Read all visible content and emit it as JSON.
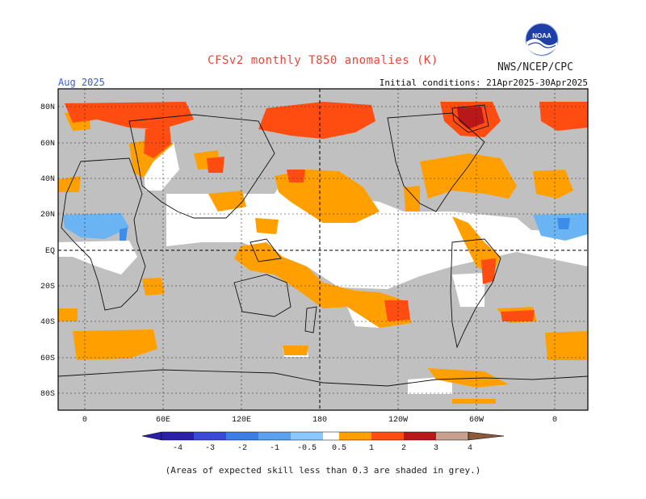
{
  "header": {
    "title": "CFSv2 monthly T850 anomalies (K)",
    "agency": "NWS/NCEP/CPC",
    "month": "Aug 2025",
    "initial_conditions": "Initial conditions: 21Apr2025-30Apr2025"
  },
  "logo": {
    "text": "NOAA"
  },
  "map": {
    "lat_labels": [
      "80N",
      "60N",
      "40N",
      "20N",
      "EQ",
      "20S",
      "40S",
      "60S",
      "80S"
    ],
    "lon_labels": [
      "0",
      "60E",
      "120E",
      "180",
      "120W",
      "60W",
      "0"
    ],
    "colors": {
      "grey": "#c0c0c0",
      "white": "#ffffff",
      "orange": "#ffa000",
      "red_orange": "#ff4d12",
      "dark_red": "#b8181a",
      "light_blue": "#6ab4f4",
      "blue": "#3d8ce8"
    }
  },
  "colorbar": {
    "labels": [
      "-4",
      "-3",
      "-2",
      "-1",
      "-0.5",
      "0.5",
      "1",
      "2",
      "3",
      "4"
    ],
    "colors": [
      "#2a1fa8",
      "#3a49d6",
      "#3b7ee6",
      "#5aa2f0",
      "#8ac8ff",
      "#ffffff",
      "#ffa000",
      "#ff4d12",
      "#b8181a",
      "#c8a090",
      "#8a5a3a"
    ]
  },
  "footer": {
    "note": "(Areas of expected skill less than 0.3 are shaded in grey.)"
  }
}
